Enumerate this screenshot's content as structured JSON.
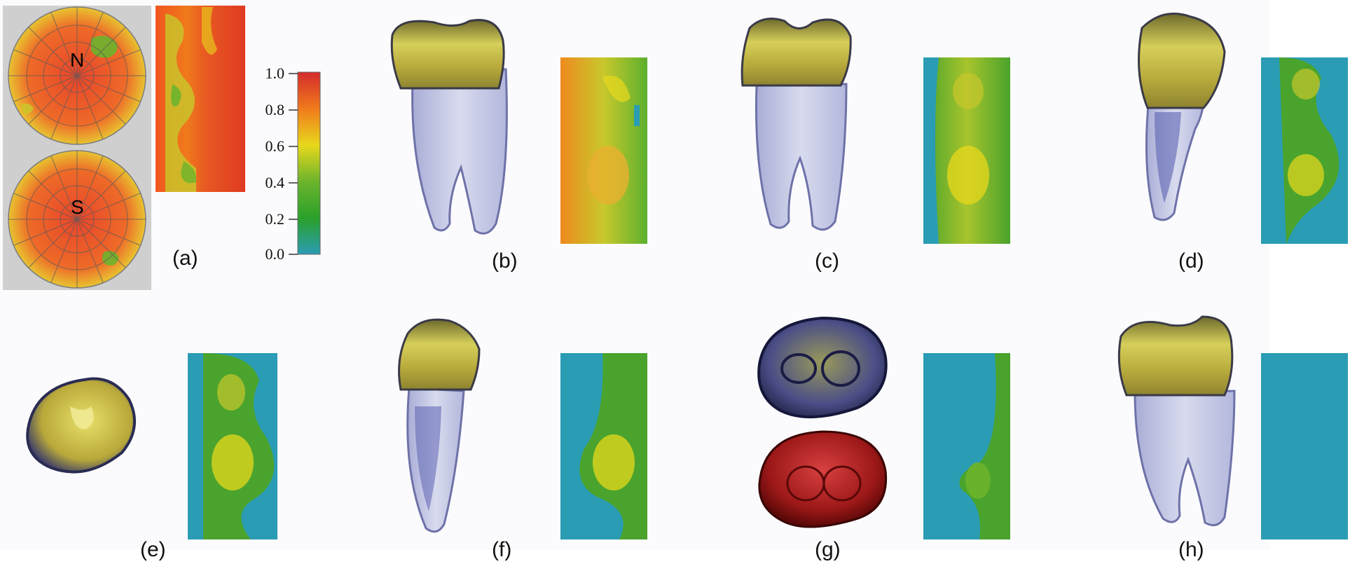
{
  "figure": {
    "panel_labels": [
      "(a)",
      "(b)",
      "(c)",
      "(d)",
      "(e)",
      "(f)",
      "(g)",
      "(h)"
    ],
    "sphere_labels": {
      "north": "N",
      "south": "S"
    },
    "colorbar": {
      "ticks": [
        "1.0",
        "0.8",
        "0.6",
        "0.4",
        "0.2",
        "0.0"
      ],
      "colors": [
        "#d42b2b",
        "#f08a1c",
        "#e6d81c",
        "#6cb42c",
        "#2aa12a",
        "#2a9cb4"
      ]
    },
    "colors": {
      "crown": "#b8a83a",
      "root": "#c4c8e4",
      "red_tooth": "#8e1414",
      "teal": "#2a9cb4",
      "green": "#4aa32c"
    }
  }
}
